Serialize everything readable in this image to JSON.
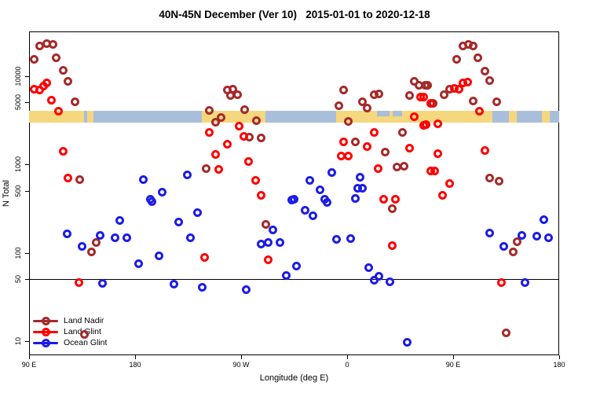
{
  "title": "40N-45N December (Ver 10)   2015-01-01 to 2020-12-18",
  "chart_data": {
    "type": "scatter",
    "title": "40N-45N December (Ver 10)   2015-01-01 to 2020-12-18",
    "xlabel": "Longitude (deg E)",
    "ylabel": "N Total",
    "x_axis": {
      "note": "wrapped longitude axis; position = degrees east of 90E, spanning 450 deg",
      "range_deg": [
        0,
        450
      ],
      "ticks": [
        {
          "deg": 0,
          "label": "90 E"
        },
        {
          "deg": 90,
          "label": "180"
        },
        {
          "deg": 180,
          "label": "90 W"
        },
        {
          "deg": 270,
          "label": "0"
        },
        {
          "deg": 360,
          "label": "90 E"
        },
        {
          "deg": 450,
          "label": "180"
        }
      ]
    },
    "y_axis": {
      "scale": "log",
      "tick_values": [
        10000,
        5000,
        1000,
        500,
        100,
        50,
        10
      ],
      "tick_labels": [
        "10000",
        "5000",
        "1000",
        "500",
        "100",
        "50",
        "10"
      ],
      "range": [
        7,
        30000
      ]
    },
    "reference_line_y": 50,
    "map_strip": {
      "top_value": 4050,
      "bottom_value": 2950,
      "ocean_color": "#A9BEDB",
      "land_color": "#F5D77E",
      "land_segments_deg": [
        [
          0,
          46.7
        ],
        [
          49.3,
          54.7
        ],
        [
          146.7,
          200.7
        ],
        [
          260.7,
          393.3
        ],
        [
          407.3,
          414
        ],
        [
          435.3,
          442
        ]
      ],
      "inland_water_deg": [
        [
          295.3,
          306
        ],
        [
          308.7,
          316.7
        ]
      ]
    },
    "series": [
      {
        "name": "Land Nadir",
        "color": "#A52A2A",
        "points": [
          [
            9.3,
            21700
          ],
          [
            15.3,
            23100
          ],
          [
            20,
            22600
          ],
          [
            4,
            15300
          ],
          [
            23.3,
            16000
          ],
          [
            28.7,
            11500
          ],
          [
            33.3,
            8670
          ],
          [
            39.3,
            5110
          ],
          [
            43.3,
            665
          ],
          [
            168,
            6930
          ],
          [
            173.3,
            7080
          ],
          [
            171.3,
            6010
          ],
          [
            177.3,
            6140
          ],
          [
            153.3,
            4080
          ],
          [
            182.7,
            4170
          ],
          [
            163.3,
            3400
          ],
          [
            158,
            3000
          ],
          [
            193.3,
            3130
          ],
          [
            187.3,
            2040
          ],
          [
            197.3,
            2000
          ],
          [
            150,
            885
          ],
          [
            267.3,
            6930
          ],
          [
            292.7,
            6140
          ],
          [
            297.3,
            6260
          ],
          [
            282.7,
            5110
          ],
          [
            263.3,
            4610
          ],
          [
            287.3,
            4340
          ],
          [
            327.3,
            8670
          ],
          [
            331.3,
            7840
          ],
          [
            336,
            7840
          ],
          [
            323.3,
            6010
          ],
          [
            270.7,
            3070
          ],
          [
            317.3,
            2310
          ],
          [
            277.3,
            1810
          ],
          [
            302,
            1360
          ],
          [
            312,
            923
          ],
          [
            318,
            959
          ],
          [
            368,
            21700
          ],
          [
            373.3,
            22600
          ],
          [
            377.3,
            21700
          ],
          [
            362.7,
            15300
          ],
          [
            381.3,
            16000
          ],
          [
            386.7,
            11300
          ],
          [
            391.3,
            8850
          ],
          [
            338,
            7840
          ],
          [
            352,
            6140
          ],
          [
            356.7,
            7080
          ],
          [
            342.7,
            4900
          ],
          [
            376.7,
            5210
          ],
          [
            397.3,
            5110
          ],
          [
            399.3,
            638
          ],
          [
            391.3,
            693
          ],
          [
            56.7,
            130
          ],
          [
            52.7,
            102
          ],
          [
            46.7,
            12
          ],
          [
            201.3,
            208
          ],
          [
            308,
            313
          ],
          [
            414,
            133
          ],
          [
            411.3,
            102
          ],
          [
            404.7,
            12.5
          ]
        ]
      },
      {
        "name": "Land Glint",
        "color": "#FF0000",
        "points": [
          [
            14.7,
            8320
          ],
          [
            12,
            7670
          ],
          [
            4,
            7080
          ],
          [
            8.7,
            6930
          ],
          [
            19.3,
            5320
          ],
          [
            24.7,
            4000
          ],
          [
            29.3,
            1410
          ],
          [
            32.7,
            693
          ],
          [
            178,
            2720
          ],
          [
            153.3,
            2310
          ],
          [
            182,
            2080
          ],
          [
            168,
            1700
          ],
          [
            158,
            1300
          ],
          [
            186,
            1080
          ],
          [
            161.3,
            867
          ],
          [
            192,
            652
          ],
          [
            197.3,
            443
          ],
          [
            332,
            5770
          ],
          [
            340.7,
            4900
          ],
          [
            327.3,
            3470
          ],
          [
            335.3,
            2770
          ],
          [
            292.7,
            2310
          ],
          [
            267.3,
            1810
          ],
          [
            286.7,
            1600
          ],
          [
            264.7,
            1250
          ],
          [
            271.3,
            1250
          ],
          [
            322.7,
            1530
          ],
          [
            296,
            885
          ],
          [
            340.7,
            832
          ],
          [
            301.3,
            400
          ],
          [
            311.3,
            400
          ],
          [
            360.7,
            7210
          ],
          [
            365.3,
            7080
          ],
          [
            368,
            8320
          ],
          [
            372,
            8490
          ],
          [
            335.3,
            5770
          ],
          [
            382,
            4000
          ],
          [
            337.3,
            2830
          ],
          [
            347.3,
            2880
          ],
          [
            347.3,
            1330
          ],
          [
            386.7,
            1440
          ],
          [
            344,
            832
          ],
          [
            357.3,
            601
          ],
          [
            351.3,
            443
          ],
          [
            42,
            46
          ],
          [
            149.3,
            89
          ],
          [
            202.7,
            83
          ],
          [
            308,
            120
          ],
          [
            400.7,
            46
          ]
        ]
      },
      {
        "name": "Ocean Glint",
        "color": "#1C1CE8",
        "points": [
          [
            97.3,
            665
          ],
          [
            113.3,
            480
          ],
          [
            102.7,
            400
          ],
          [
            134,
            752
          ],
          [
            223.3,
            392
          ],
          [
            257.3,
            800
          ],
          [
            238,
            652
          ],
          [
            281.3,
            708
          ],
          [
            247.3,
            510
          ],
          [
            278.7,
            532
          ],
          [
            282.7,
            532
          ],
          [
            251.3,
            400
          ],
          [
            277.3,
            408
          ],
          [
            225.3,
            400
          ],
          [
            104,
            376
          ],
          [
            77.3,
            231
          ],
          [
            32,
            163
          ],
          [
            60,
            157
          ],
          [
            72.7,
            147
          ],
          [
            83.3,
            147
          ],
          [
            44.7,
            118
          ],
          [
            93.3,
            75
          ],
          [
            110,
            92
          ],
          [
            62,
            45
          ],
          [
            143.3,
            283
          ],
          [
            127.3,
            221
          ],
          [
            137.3,
            147
          ],
          [
            207.3,
            181
          ],
          [
            197.3,
            125
          ],
          [
            202.7,
            130
          ],
          [
            212.7,
            130
          ],
          [
            227.3,
            71
          ],
          [
            218,
            55
          ],
          [
            123.3,
            44
          ],
          [
            146.7,
            41
          ],
          [
            184,
            38
          ],
          [
            252.7,
            368
          ],
          [
            234,
            300
          ],
          [
            241.3,
            261
          ],
          [
            261.3,
            141
          ],
          [
            272.7,
            145
          ],
          [
            288,
            68
          ],
          [
            296.7,
            54
          ],
          [
            292.7,
            49
          ],
          [
            306,
            47
          ],
          [
            320.7,
            9.7
          ],
          [
            436.7,
            235
          ],
          [
            390.7,
            166
          ],
          [
            418,
            157
          ],
          [
            430.7,
            153
          ],
          [
            440.7,
            147
          ],
          [
            402.7,
            118
          ],
          [
            420.7,
            46
          ]
        ]
      }
    ],
    "legend": {
      "position": "bottom-left-inside",
      "items": [
        "Land Nadir",
        "Land Glint",
        "Ocean Glint"
      ]
    }
  }
}
